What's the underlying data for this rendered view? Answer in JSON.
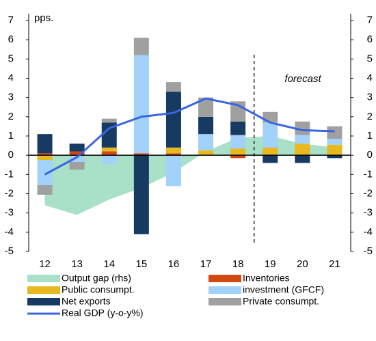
{
  "chart_data": {
    "type": "bar",
    "categories": [
      "12",
      "13",
      "14",
      "15",
      "16",
      "17",
      "18",
      "19",
      "20",
      "21"
    ],
    "annotations": [
      "pps.",
      "forecast"
    ],
    "ylim": [
      -5,
      7
    ],
    "yticks": [
      -5,
      -4,
      -3,
      -2,
      -1,
      0,
      1,
      2,
      3,
      4,
      5,
      6,
      7
    ],
    "y2lim": [
      -5,
      7
    ],
    "y2ticks": [
      -5,
      -4,
      -3,
      -2,
      -1,
      0,
      1,
      2,
      3,
      4,
      5,
      6,
      7
    ],
    "series": [
      {
        "name": "Output gap (rhs)",
        "kind": "area",
        "axis": "y2",
        "color": "#a8e0c8",
        "values": [
          -2.6,
          -3.1,
          -2.3,
          -1.7,
          -0.9,
          0.2,
          0.9,
          1.0,
          0.6,
          0.4
        ]
      },
      {
        "name": "Inventories",
        "kind": "bar",
        "color": "#d24a12",
        "values": [
          0.1,
          0.2,
          0.2,
          0.1,
          0.1,
          0,
          -0.15,
          0,
          0,
          0
        ]
      },
      {
        "name": "Public consumpt.",
        "kind": "bar",
        "color": "#e8b820",
        "values": [
          -0.25,
          0,
          0.2,
          0,
          0.3,
          0.25,
          0.35,
          0.4,
          0.6,
          0.55
        ]
      },
      {
        "name": "investment (GFCF)",
        "kind": "bar",
        "color": "#a2d2fa",
        "values": [
          -1.3,
          -0.35,
          -0.45,
          5.1,
          -1.6,
          0.85,
          0.7,
          1.3,
          0.45,
          0.3
        ]
      },
      {
        "name": "Net exports",
        "kind": "bar",
        "color": "#163a62",
        "values": [
          1.0,
          0.4,
          1.3,
          -4.1,
          2.9,
          0.9,
          0.7,
          -0.4,
          -0.4,
          -0.15
        ]
      },
      {
        "name": "Private consumpt.",
        "kind": "bar",
        "color": "#a0a0a0",
        "values": [
          -0.5,
          -0.4,
          0.2,
          0.9,
          0.5,
          1.0,
          1.05,
          0.55,
          0.7,
          0.65
        ]
      },
      {
        "name": "Real GDP (y-o-y%)",
        "kind": "line",
        "color": "#3a64e0",
        "values": [
          -1.0,
          -0.1,
          1.4,
          2.0,
          2.2,
          2.95,
          2.6,
          1.7,
          1.3,
          1.25
        ]
      }
    ]
  }
}
